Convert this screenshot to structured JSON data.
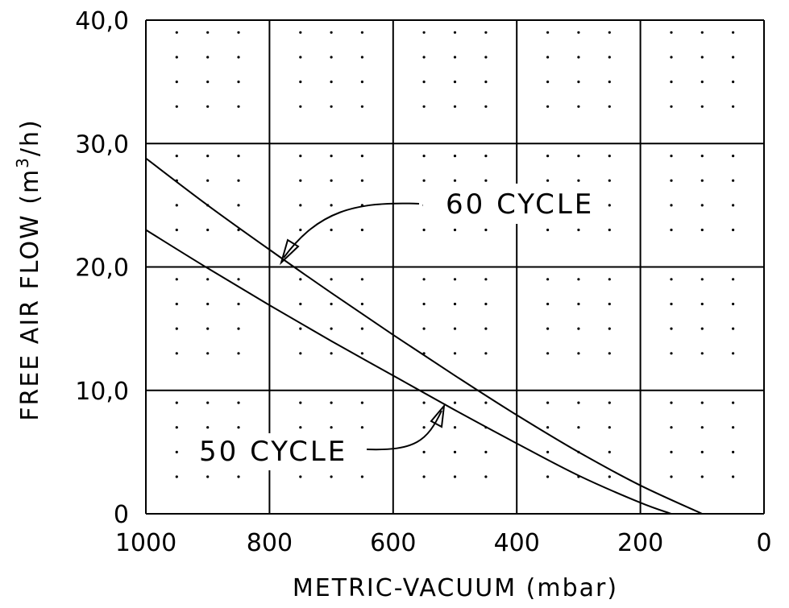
{
  "chart_data": {
    "type": "line",
    "title": "",
    "xlabel": "METRIC-VACUUM (mbar)",
    "ylabel_main": "FREE AIR FLOW (m",
    "ylabel_sup": "3",
    "ylabel_end": "/h)",
    "xlim": [
      1000,
      0
    ],
    "ylim": [
      0,
      40
    ],
    "x_reversed": true,
    "grid": true,
    "x_ticks": [
      1000,
      800,
      600,
      400,
      200,
      0
    ],
    "x_tick_labels": [
      "1000",
      "800",
      "600",
      "400",
      "200",
      "0"
    ],
    "y_ticks": [
      0,
      10,
      20,
      30,
      40
    ],
    "y_tick_labels": [
      "0",
      "10,0",
      "20,0",
      "30,0",
      "40,0"
    ],
    "series": [
      {
        "name": "60 CYCLE",
        "x": [
          1000,
          900,
          800,
          700,
          600,
          500,
          400,
          300,
          200,
          100
        ],
        "y": [
          28.8,
          25.0,
          21.4,
          17.9,
          14.5,
          11.2,
          8.0,
          5.0,
          2.3,
          0
        ]
      },
      {
        "name": "50 CYCLE",
        "x": [
          1000,
          900,
          800,
          700,
          600,
          500,
          400,
          300,
          200,
          150
        ],
        "y": [
          23.0,
          19.9,
          16.9,
          14.0,
          11.2,
          8.4,
          5.7,
          3.1,
          0.9,
          0
        ]
      }
    ],
    "annotations": [
      {
        "text": "60 CYCLE",
        "target_series": 0
      },
      {
        "text": "50 CYCLE",
        "target_series": 1
      }
    ]
  }
}
